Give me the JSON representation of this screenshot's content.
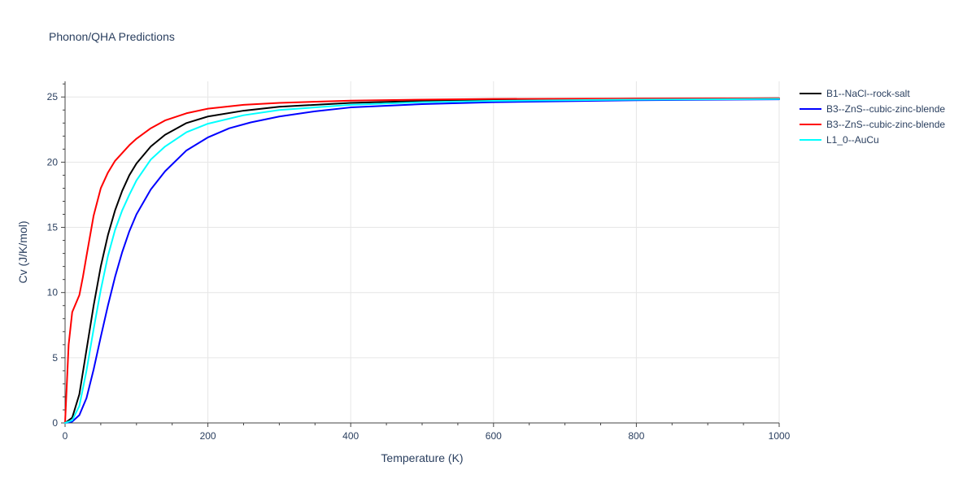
{
  "chart_data": {
    "type": "line",
    "title": "Phonon/QHA Predictions",
    "xlabel": "Temperature (K)",
    "ylabel": "Cv (J/K/mol)",
    "xlim": [
      0,
      1000
    ],
    "ylim": [
      0,
      26.2
    ],
    "x_ticks": [
      0,
      200,
      400,
      600,
      800,
      1000
    ],
    "y_ticks": [
      0,
      5,
      10,
      15,
      20,
      25
    ],
    "grid": true,
    "legend_position": "top-right",
    "series": [
      {
        "name": "B1--NaCl--rock-salt",
        "color": "#000000",
        "x": [
          0,
          10,
          20,
          30,
          40,
          50,
          60,
          70,
          80,
          90,
          100,
          120,
          140,
          170,
          200,
          250,
          300,
          400,
          500,
          600,
          800,
          1000
        ],
        "y": [
          0,
          0.4,
          2.2,
          5.6,
          9.0,
          12.0,
          14.4,
          16.3,
          17.8,
          19.0,
          19.9,
          21.2,
          22.1,
          23.0,
          23.5,
          23.95,
          24.25,
          24.55,
          24.7,
          24.78,
          24.85,
          24.9
        ]
      },
      {
        "name": "B3--ZnS--cubic-zinc-blende",
        "color": "#0000ff",
        "x": [
          0,
          10,
          20,
          30,
          40,
          50,
          60,
          70,
          80,
          90,
          100,
          120,
          140,
          170,
          200,
          230,
          260,
          300,
          350,
          400,
          500,
          600,
          800,
          1000
        ],
        "y": [
          0,
          0.1,
          0.6,
          1.9,
          4.1,
          6.6,
          9.0,
          11.2,
          13.1,
          14.7,
          16.0,
          17.9,
          19.3,
          20.9,
          21.9,
          22.6,
          23.05,
          23.5,
          23.9,
          24.2,
          24.45,
          24.6,
          24.75,
          24.82
        ]
      },
      {
        "name": "B3--ZnS--cubic-zinc-blende",
        "color": "#ff0000",
        "x": [
          0,
          5,
          10,
          20,
          25,
          30,
          40,
          50,
          60,
          70,
          80,
          90,
          100,
          120,
          140,
          170,
          200,
          250,
          300,
          400,
          500,
          600,
          800,
          1000
        ],
        "y": [
          0,
          6.0,
          8.5,
          9.8,
          11.2,
          12.8,
          15.9,
          18.0,
          19.2,
          20.1,
          20.7,
          21.3,
          21.8,
          22.6,
          23.2,
          23.75,
          24.1,
          24.4,
          24.55,
          24.72,
          24.8,
          24.85,
          24.88,
          24.9
        ]
      },
      {
        "name": "L1_0--AuCu",
        "color": "#00ffff",
        "x": [
          0,
          10,
          20,
          30,
          40,
          50,
          60,
          70,
          80,
          90,
          100,
          120,
          140,
          170,
          200,
          250,
          300,
          400,
          500,
          600,
          800,
          1000
        ],
        "y": [
          0,
          0.2,
          1.3,
          4.0,
          7.2,
          10.2,
          12.8,
          14.8,
          16.3,
          17.5,
          18.6,
          20.2,
          21.2,
          22.3,
          22.95,
          23.6,
          24.0,
          24.4,
          24.6,
          24.7,
          24.8,
          24.85
        ]
      }
    ]
  }
}
